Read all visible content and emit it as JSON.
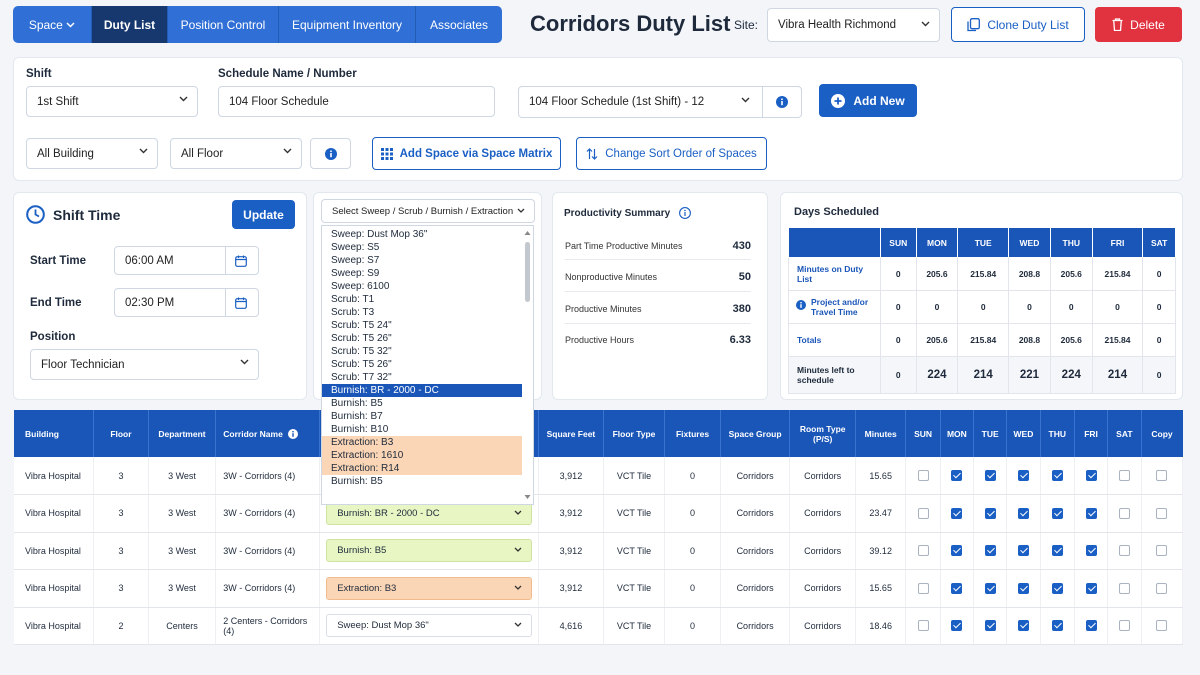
{
  "nav": {
    "items": [
      "Space",
      "Duty List",
      "Position Control",
      "Equipment Inventory",
      "Associates"
    ]
  },
  "header": {
    "title": "Corridors Duty List",
    "site_label": "Site:",
    "site_value": "Vibra Health Richmond",
    "clone_label": "Clone Duty List",
    "delete_label": "Delete"
  },
  "filters": {
    "shift_label": "Shift",
    "shift_value": "1st Shift",
    "schedule_label": "Schedule Name / Number",
    "schedule_value": "104 Floor Schedule",
    "schedule_select": "104 Floor Schedule (1st Shift) - 12",
    "add_new": "Add New",
    "building": "All Building",
    "floor": "All Floor",
    "matrix_label": "Add Space via Space Matrix",
    "sort_label": "Change Sort Order of Spaces"
  },
  "shift_time": {
    "title": "Shift Time",
    "update": "Update",
    "start_label": "Start Time",
    "start_value": "06:00 AM",
    "end_label": "End Time",
    "end_value": "02:30 PM",
    "position_label": "Position",
    "position_value": "Floor Technician"
  },
  "task_dropdown": {
    "placeholder": "Select Sweep / Scrub / Burnish / Extraction",
    "options": [
      "Sweep: Dust Mop 36\"",
      "Sweep: S5",
      "Sweep: S7",
      "Sweep: S9",
      "Sweep: 6100",
      "Scrub: T1",
      "Scrub: T3",
      "Scrub: T5 24\"",
      "Scrub: T5 26\"",
      "Scrub: T5 32\"",
      "Scrub: T5 26\"",
      "Scrub: T7 32\"",
      "Burnish: BR - 2000 - DC",
      "Burnish: B5",
      "Burnish: B7",
      "Burnish: B10",
      "Extraction: B3",
      "Extraction: 1610",
      "Extraction: R14",
      "Burnish: B5"
    ],
    "selected_index": 12
  },
  "productivity": {
    "title": "Productivity Summary",
    "rows": [
      {
        "label": "Part Time Productive Minutes",
        "value": "430"
      },
      {
        "label": "Nonproductive Minutes",
        "value": "50"
      },
      {
        "label": "Productive Minutes",
        "value": "380"
      },
      {
        "label": "Productive Hours",
        "value": "6.33"
      }
    ]
  },
  "days_scheduled": {
    "title": "Days Scheduled",
    "headers": [
      "SUN",
      "MON",
      "TUE",
      "WED",
      "THU",
      "FRI",
      "SAT"
    ],
    "rows": [
      {
        "label": "Minutes on Duty List",
        "values": [
          "0",
          "205.6",
          "215.84",
          "208.8",
          "205.6",
          "215.84",
          "0"
        ]
      },
      {
        "label": "Project and/or Travel Time",
        "values": [
          "0",
          "0",
          "0",
          "0",
          "0",
          "0",
          "0"
        ]
      },
      {
        "label": "Totals",
        "values": [
          "0",
          "205.6",
          "215.84",
          "208.8",
          "205.6",
          "215.84",
          "0"
        ]
      },
      {
        "label": "Minutes left to schedule",
        "values": [
          "0",
          "224",
          "214",
          "221",
          "224",
          "214",
          "0"
        ]
      }
    ]
  },
  "table": {
    "headers": [
      "Building",
      "Floor",
      "Department",
      "Corridor Name",
      "Square Feet",
      "Floor Type",
      "Fixtures",
      "Space Group",
      "Room Type (P/S)",
      "Minutes",
      "SUN",
      "MON",
      "TUE",
      "WED",
      "THU",
      "FRI",
      "SAT",
      "Copy"
    ],
    "rows": [
      {
        "building": "Vibra Hospital",
        "floor": "3",
        "dept": "3 West",
        "corridor": "3W - Corridors (4)",
        "task": "",
        "sqft": "3,912",
        "floortype": "VCT Tile",
        "fixtures": "0",
        "group": "Corridors",
        "roomtype": "Corridors",
        "minutes": "15.65"
      },
      {
        "building": "Vibra Hospital",
        "floor": "3",
        "dept": "3 West",
        "corridor": "3W - Corridors (4)",
        "task": "Burnish: BR - 2000 - DC",
        "sqft": "3,912",
        "floortype": "VCT Tile",
        "fixtures": "0",
        "group": "Corridors",
        "roomtype": "Corridors",
        "minutes": "23.47"
      },
      {
        "building": "Vibra Hospital",
        "floor": "3",
        "dept": "3 West",
        "corridor": "3W - Corridors (4)",
        "task": "Burnish: B5",
        "sqft": "3,912",
        "floortype": "VCT Tile",
        "fixtures": "0",
        "group": "Corridors",
        "roomtype": "Corridors",
        "minutes": "39.12"
      },
      {
        "building": "Vibra Hospital",
        "floor": "3",
        "dept": "3 West",
        "corridor": "3W - Corridors (4)",
        "task": "Extraction: B3",
        "sqft": "3,912",
        "floortype": "VCT Tile",
        "fixtures": "0",
        "group": "Corridors",
        "roomtype": "Corridors",
        "minutes": "15.65"
      },
      {
        "building": "Vibra Hospital",
        "floor": "2",
        "dept": "Centers",
        "corridor": "2 Centers - Corridors (4)",
        "task": "Sweep: Dust Mop 36\"",
        "sqft": "4,616",
        "floortype": "VCT Tile",
        "fixtures": "0",
        "group": "Corridors",
        "roomtype": "Corridors",
        "minutes": "18.46"
      }
    ]
  },
  "colors": {
    "primary": "#1a5fc4",
    "header_dark": "#17386e",
    "delete": "#e0323f",
    "burnish_bg": "#e8f6c4",
    "extraction_bg": "#fbd6b6"
  }
}
